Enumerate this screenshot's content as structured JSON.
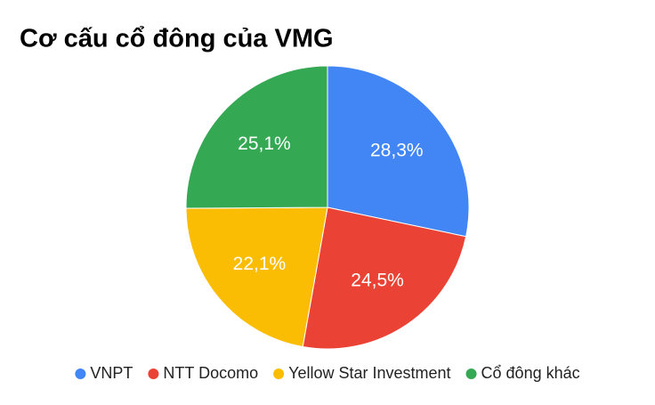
{
  "chart_data": {
    "type": "pie",
    "title": "Cơ cấu cổ đông của VMG",
    "categories": [
      "VNPT",
      "NTT Docomo",
      "Yellow Star Investment",
      "Cổ đông khác"
    ],
    "values": [
      28.3,
      24.5,
      22.1,
      25.1
    ],
    "value_labels": [
      "28,3%",
      "24,5%",
      "22,1%",
      "25,1%"
    ],
    "colors": [
      "#4285f4",
      "#ea4335",
      "#fbbc04",
      "#34a853"
    ],
    "legend": "bottom"
  }
}
